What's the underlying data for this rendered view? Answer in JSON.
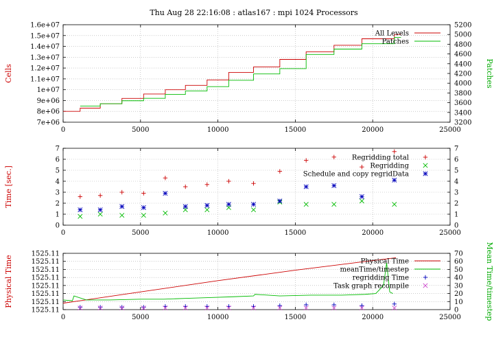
{
  "title": "Thu Aug 28 22:16:08 : atlas167 : mpi 1024 Processors",
  "colors": {
    "red": "#cc0000",
    "green": "#00bb00",
    "blue": "#0000bb",
    "magenta": "#cc44cc"
  },
  "chart_data": [
    {
      "type": "line",
      "ylabel": "Cells",
      "y2label": "Patches",
      "xlim": [
        0,
        25000
      ],
      "ylim": [
        7000000,
        16000000
      ],
      "y2lim": [
        3200,
        5200
      ],
      "x_ticks": [
        "0",
        "5000",
        "10000",
        "15000",
        "20000",
        "25000"
      ],
      "y_ticks": [
        "7e+06",
        "8e+06",
        "9e+06",
        "1e+07",
        "1.1e+07",
        "1.2e+07",
        "1.3e+07",
        "1.4e+07",
        "1.5e+07",
        "1.6e+07"
      ],
      "y2_ticks": [
        "3200",
        "3400",
        "3600",
        "3800",
        "4000",
        "4200",
        "4400",
        "4600",
        "4800",
        "5000",
        "5200"
      ],
      "series": [
        {
          "name": "All Levels",
          "axis": "left",
          "step": true,
          "x": [
            0,
            1100,
            2400,
            3800,
            5200,
            6600,
            7900,
            9300,
            10700,
            12300,
            14000,
            15700,
            17500,
            19300,
            21400
          ],
          "y": [
            8000000,
            8300000,
            8700000,
            9200000,
            9600000,
            10000000,
            10400000,
            10900000,
            11600000,
            12100000,
            12800000,
            13500000,
            14100000,
            14700000,
            15100000
          ]
        },
        {
          "name": "Patches",
          "axis": "right",
          "step": true,
          "x": [
            1100,
            2400,
            3800,
            5200,
            6600,
            7900,
            9300,
            10700,
            12300,
            14000,
            15700,
            17500,
            19300,
            21400
          ],
          "y": [
            3530,
            3580,
            3640,
            3690,
            3770,
            3840,
            3930,
            4060,
            4190,
            4300,
            4590,
            4700,
            4810,
            4940
          ]
        }
      ]
    },
    {
      "type": "scatter",
      "ylabel": "Time [sec.]",
      "xlim": [
        0,
        25000
      ],
      "ylim": [
        0,
        7
      ],
      "x_ticks": [
        "0",
        "5000",
        "10000",
        "15000",
        "20000",
        "25000"
      ],
      "y_ticks": [
        "0",
        "1",
        "2",
        "3",
        "4",
        "5",
        "6",
        "7"
      ],
      "y2_ticks": [
        "0",
        "1",
        "2",
        "3",
        "4",
        "5",
        "6",
        "7"
      ],
      "x": [
        1100,
        2400,
        3800,
        5200,
        6600,
        7900,
        9300,
        10700,
        12300,
        14000,
        15700,
        17500,
        19300,
        21400
      ],
      "series": [
        {
          "name": "Regridding total",
          "marker": "plus",
          "y": [
            2.6,
            2.7,
            3.0,
            2.9,
            4.3,
            3.5,
            3.7,
            4.0,
            3.8,
            4.9,
            5.9,
            6.2,
            5.3,
            6.7
          ]
        },
        {
          "name": "Regridding",
          "marker": "x",
          "y": [
            0.8,
            1.0,
            0.9,
            0.9,
            1.1,
            1.4,
            1.4,
            1.6,
            1.4,
            2.1,
            1.9,
            1.9,
            2.2,
            1.9
          ]
        },
        {
          "name": "Schedule and copy regridData",
          "marker": "star",
          "y": [
            1.4,
            1.4,
            1.7,
            1.6,
            2.9,
            1.7,
            1.8,
            1.9,
            1.9,
            2.2,
            3.5,
            3.6,
            2.6,
            4.1
          ]
        }
      ]
    },
    {
      "type": "line",
      "ylabel": "Physical Time",
      "y2label": "Mean Time/timestep",
      "xlim": [
        0,
        25000
      ],
      "ylim": [
        0,
        7
      ],
      "y2lim": [
        0,
        70
      ],
      "x_ticks": [
        "0",
        "5000",
        "10000",
        "15000",
        "20000",
        "25000"
      ],
      "y_ticks": [
        "1525.11",
        "1525.11",
        "1525.11",
        "1525.11",
        "1525.11",
        "1525.11",
        "1525.11",
        "1525.11"
      ],
      "y2_ticks": [
        "0",
        "10",
        "20",
        "30",
        "40",
        "50",
        "60",
        "70"
      ],
      "series": [
        {
          "name": "Physical Time",
          "axis": "left",
          "x": [
            0,
            5000,
            10000,
            15000,
            20000,
            21500
          ],
          "y": [
            0.8,
            2.2,
            3.6,
            4.9,
            6.1,
            6.45
          ]
        },
        {
          "name": "meanTime/timestep",
          "axis": "right",
          "x": [
            0,
            600,
            700,
            1500,
            3000,
            5000,
            6500,
            8000,
            9500,
            11000,
            12300,
            12400,
            14000,
            16000,
            18000,
            19500,
            20200,
            20700,
            20900,
            21100,
            21300
          ],
          "y": [
            12,
            11,
            17,
            12,
            12,
            13,
            13,
            14,
            15,
            16,
            17,
            19,
            17,
            18,
            18,
            19,
            20,
            30,
            58,
            22,
            20
          ]
        },
        {
          "name": "regridding Time",
          "axis": "right",
          "marker": "plus",
          "x": [
            1100,
            2400,
            3800,
            5200,
            6600,
            7900,
            9300,
            10700,
            12300,
            14000,
            15700,
            17500,
            19300,
            21400
          ],
          "y": [
            3,
            3,
            3,
            3,
            4,
            4,
            4,
            4,
            4,
            5,
            6,
            6,
            5,
            7
          ]
        },
        {
          "name": "Task graph recompile",
          "axis": "right",
          "marker": "x",
          "x": [
            1100,
            2400,
            3800,
            5200,
            6600,
            7900,
            9300,
            10700,
            12300,
            14000,
            15700,
            17500,
            19300,
            21400
          ],
          "y": [
            2,
            2,
            2,
            2,
            2,
            2,
            2,
            2,
            2,
            2,
            2,
            2,
            2,
            2
          ]
        }
      ]
    }
  ]
}
